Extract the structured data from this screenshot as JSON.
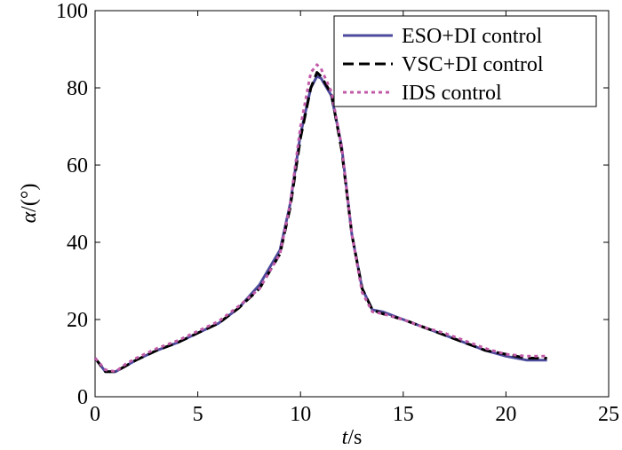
{
  "chart_data": {
    "type": "line",
    "xlabel_var": "t",
    "xlabel_unit": "/s",
    "ylabel_var": "α",
    "ylabel_unit": "/(°)",
    "xlim": [
      0,
      25
    ],
    "ylim": [
      0,
      100
    ],
    "xticks": [
      "0",
      "5",
      "10",
      "15",
      "20",
      "25"
    ],
    "yticks": [
      "0",
      "20",
      "40",
      "60",
      "80",
      "100"
    ],
    "legend_position": "top-right",
    "grid": false,
    "series": [
      {
        "name": "ESO+DI control",
        "color": "#4b4a9b",
        "dash": "solid",
        "x": [
          0,
          0.5,
          1,
          1.5,
          2,
          3,
          4,
          5,
          6,
          7,
          8,
          9,
          9.5,
          10,
          10.5,
          10.8,
          11,
          11.5,
          12,
          12.5,
          13,
          13.5,
          14,
          15,
          16,
          17,
          18,
          19,
          20,
          21,
          22
        ],
        "y": [
          10,
          6.5,
          6.5,
          8,
          9.5,
          12,
          14,
          16.5,
          19,
          23,
          29,
          38,
          50,
          68,
          80,
          83,
          82.5,
          78,
          65,
          42,
          28,
          22.5,
          22,
          20,
          18,
          16,
          14,
          12,
          10.5,
          9.5,
          9.5
        ]
      },
      {
        "name": "VSC+DI control",
        "color": "#000000",
        "dash": "dashed",
        "x": [
          0,
          0.5,
          1,
          1.5,
          2,
          3,
          4,
          5,
          6,
          7,
          8,
          9,
          9.5,
          10,
          10.5,
          10.8,
          11,
          11.5,
          12,
          12.5,
          13,
          13.5,
          14,
          15,
          16,
          17,
          18,
          19,
          20,
          21,
          22
        ],
        "y": [
          10,
          6.5,
          6.5,
          8,
          9.5,
          12,
          14,
          16.5,
          19,
          23,
          28,
          37,
          49,
          67,
          80,
          84,
          83,
          78.5,
          64,
          42,
          28,
          22.5,
          21.5,
          20,
          18,
          16,
          14,
          12,
          11,
          10,
          10
        ]
      },
      {
        "name": "IDS control",
        "color": "#c15ba8",
        "dash": "dotted",
        "x": [
          0,
          0.5,
          1,
          1.5,
          2,
          3,
          4,
          5,
          6,
          7,
          8,
          9,
          9.5,
          10,
          10.5,
          10.8,
          11,
          11.5,
          12,
          12.5,
          13,
          13.5,
          14,
          15,
          16,
          17,
          18,
          19,
          20,
          21,
          22
        ],
        "y": [
          10,
          7,
          6.5,
          8.5,
          10,
          12.5,
          14.5,
          17,
          19.5,
          23.5,
          28,
          37,
          50,
          70,
          84,
          86,
          85,
          79,
          65,
          42,
          27,
          22,
          21.5,
          20,
          18,
          16.5,
          14.5,
          12.5,
          11,
          10.5,
          10.5
        ]
      }
    ]
  }
}
